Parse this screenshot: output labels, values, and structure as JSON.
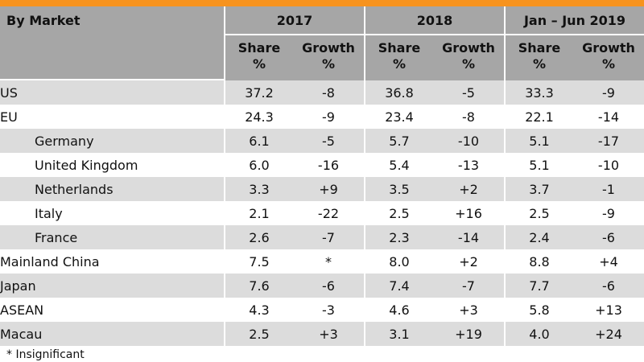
{
  "header": {
    "label": "By Market",
    "periods": [
      "2017",
      "2018",
      "Jan – Jun 2019"
    ],
    "sub_columns": [
      {
        "top": "Share",
        "unit": "%"
      },
      {
        "top": "Growth",
        "unit": "%"
      },
      {
        "top": "Share",
        "unit": "%"
      },
      {
        "top": "Growth",
        "unit": "%"
      },
      {
        "top": "Share",
        "unit": "%"
      },
      {
        "top": "Growth",
        "unit": "%"
      }
    ]
  },
  "rows": [
    {
      "market": "US",
      "values": [
        "37.2",
        "-8",
        "36.8",
        "-5",
        "33.3",
        "-9"
      ],
      "indent": false
    },
    {
      "market": "EU",
      "values": [
        "24.3",
        "-9",
        "23.4",
        "-8",
        "22.1",
        "-14"
      ],
      "indent": false
    },
    {
      "market": "Germany",
      "values": [
        "6.1",
        "-5",
        "5.7",
        "-10",
        "5.1",
        "-17"
      ],
      "indent": true
    },
    {
      "market": "United Kingdom",
      "values": [
        "6.0",
        "-16",
        "5.4",
        "-13",
        "5.1",
        "-10"
      ],
      "indent": true
    },
    {
      "market": "Netherlands",
      "values": [
        "3.3",
        "+9",
        "3.5",
        "+2",
        "3.7",
        "-1"
      ],
      "indent": true
    },
    {
      "market": "Italy",
      "values": [
        "2.1",
        "-22",
        "2.5",
        "+16",
        "2.5",
        "-9"
      ],
      "indent": true
    },
    {
      "market": "France",
      "values": [
        "2.6",
        "-7",
        "2.3",
        "-14",
        "2.4",
        "-6"
      ],
      "indent": true
    },
    {
      "market": "Mainland China",
      "values": [
        "7.5",
        "*",
        "8.0",
        "+2",
        "8.8",
        "+4"
      ],
      "indent": false
    },
    {
      "market": "Japan",
      "values": [
        "7.6",
        "-6",
        "7.4",
        "-7",
        "7.7",
        "-6"
      ],
      "indent": false
    },
    {
      "market": "ASEAN",
      "values": [
        "4.3",
        "-3",
        "4.6",
        "+3",
        "5.8",
        "+13"
      ],
      "indent": false
    },
    {
      "market": "Macau",
      "values": [
        "2.5",
        "+3",
        "3.1",
        "+19",
        "4.0",
        "+24"
      ],
      "indent": false
    }
  ],
  "footnote": "* Insignificant",
  "colors": {
    "accent_bar": "#f7931e",
    "header_bg": "#a6a6a6",
    "row_alt_bg": "#dcdcdc",
    "row_bg": "#ffffff"
  }
}
